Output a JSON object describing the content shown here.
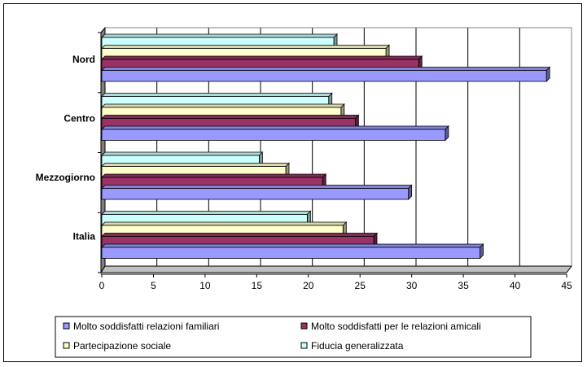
{
  "chart_data": {
    "type": "bar",
    "orientation": "horizontal",
    "style": "3d",
    "categories": [
      "Nord",
      "Centro",
      "Mezzogiorno",
      "Italia"
    ],
    "series": [
      {
        "name": "Molto soddisfatti relazioni familiari",
        "color": "#9999FF",
        "values": [
          43.5,
          33.6,
          30.0,
          37.0
        ]
      },
      {
        "name": "Molto soddisfatti per le relazioni amicali",
        "color": "#993366",
        "values": [
          31.0,
          24.8,
          21.6,
          26.6
        ]
      },
      {
        "name": "Partecipazione sociale",
        "color": "#FFFFCC",
        "values": [
          27.8,
          23.4,
          18.0,
          23.6
        ]
      },
      {
        "name": "Fiducia generalizzata",
        "color": "#CCFFFF",
        "values": [
          22.7,
          22.2,
          15.4,
          20.1
        ]
      }
    ],
    "xlim": [
      0,
      45
    ],
    "xticks": [
      "0",
      "5",
      "10",
      "15",
      "20",
      "25",
      "30",
      "35",
      "40",
      "45"
    ],
    "grid": "vertical",
    "legend_position": "bottom"
  }
}
